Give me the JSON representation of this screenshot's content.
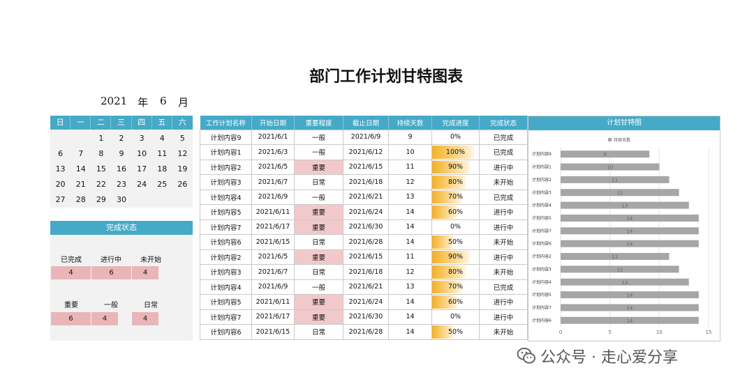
{
  "title": "部门工作计划甘特图表",
  "date": {
    "year": "2021",
    "year_unit": "年",
    "month": "6",
    "month_unit": "月"
  },
  "calendar": {
    "weekdays": [
      "日",
      "一",
      "二",
      "三",
      "四",
      "五",
      "六"
    ],
    "cells": [
      "",
      "",
      "1",
      "2",
      "3",
      "4",
      "5",
      "6",
      "7",
      "8",
      "9",
      "10",
      "11",
      "12",
      "13",
      "14",
      "15",
      "16",
      "17",
      "18",
      "19",
      "20",
      "21",
      "22",
      "23",
      "24",
      "25",
      "26",
      "27",
      "28",
      "29",
      "30",
      "",
      "",
      ""
    ]
  },
  "status": {
    "header": "完成状态",
    "states": [
      {
        "label": "已完成",
        "count": "4"
      },
      {
        "label": "进行中",
        "count": "6"
      },
      {
        "label": "未开始",
        "count": "4"
      }
    ],
    "importance": [
      {
        "label": "重要",
        "count": "6"
      },
      {
        "label": "一般",
        "count": "4"
      },
      {
        "label": "日常",
        "count": "4"
      }
    ]
  },
  "table": {
    "headers": [
      "工作计划名称",
      "开始日期",
      "重要程度",
      "截止日期",
      "持续天数",
      "完成进度",
      "完成状态"
    ],
    "rows": [
      {
        "name": "计划内容9",
        "start": "2021/6/1",
        "importance": "一般",
        "end": "2021/6/9",
        "days": "9",
        "progress": "0%",
        "progress_value": 0,
        "state": "已完成"
      },
      {
        "name": "计划内容1",
        "start": "2021/6/3",
        "importance": "一般",
        "end": "2021/6/12",
        "days": "10",
        "progress": "100%",
        "progress_value": 1.0,
        "state": "已完成"
      },
      {
        "name": "计划内容2",
        "start": "2021/6/5",
        "importance": "重要",
        "end": "2021/6/15",
        "days": "11",
        "progress": "90%",
        "progress_value": 0.9,
        "state": "进行中"
      },
      {
        "name": "计划内容3",
        "start": "2021/6/7",
        "importance": "日常",
        "end": "2021/6/18",
        "days": "12",
        "progress": "80%",
        "progress_value": 0.8,
        "state": "未开始"
      },
      {
        "name": "计划内容4",
        "start": "2021/6/9",
        "importance": "一般",
        "end": "2021/6/21",
        "days": "13",
        "progress": "70%",
        "progress_value": 0.7,
        "state": "已完成"
      },
      {
        "name": "计划内容5",
        "start": "2021/6/11",
        "importance": "重要",
        "end": "2021/6/24",
        "days": "14",
        "progress": "60%",
        "progress_value": 0.6,
        "state": "进行中"
      },
      {
        "name": "计划内容7",
        "start": "2021/6/17",
        "importance": "重要",
        "end": "2021/6/30",
        "days": "14",
        "progress": "0%",
        "progress_value": 0,
        "state": "进行中"
      },
      {
        "name": "计划内容6",
        "start": "2021/6/15",
        "importance": "日常",
        "end": "2021/6/28",
        "days": "14",
        "progress": "50%",
        "progress_value": 0.5,
        "state": "未开始"
      },
      {
        "name": "计划内容2",
        "start": "2021/6/5",
        "importance": "重要",
        "end": "2021/6/15",
        "days": "11",
        "progress": "90%",
        "progress_value": 0.9,
        "state": "进行中"
      },
      {
        "name": "计划内容3",
        "start": "2021/6/7",
        "importance": "日常",
        "end": "2021/6/18",
        "days": "12",
        "progress": "80%",
        "progress_value": 0.8,
        "state": "未开始"
      },
      {
        "name": "计划内容4",
        "start": "2021/6/9",
        "importance": "一般",
        "end": "2021/6/21",
        "days": "13",
        "progress": "70%",
        "progress_value": 0.7,
        "state": "已完成"
      },
      {
        "name": "计划内容5",
        "start": "2021/6/11",
        "importance": "重要",
        "end": "2021/6/24",
        "days": "14",
        "progress": "60%",
        "progress_value": 0.6,
        "state": "进行中"
      },
      {
        "name": "计划内容7",
        "start": "2021/6/17",
        "importance": "重要",
        "end": "2021/6/30",
        "days": "14",
        "progress": "0%",
        "progress_value": 0,
        "state": "进行中"
      },
      {
        "name": "计划内容6",
        "start": "2021/6/15",
        "importance": "日常",
        "end": "2021/6/28",
        "days": "14",
        "progress": "50%",
        "progress_value": 0.5,
        "state": "未开始"
      }
    ]
  },
  "gantt": {
    "header": "计划甘特图",
    "chart_data": {
      "type": "bar",
      "orientation": "horizontal",
      "legend": [
        "持续天数"
      ],
      "legend_position": "top",
      "categories": [
        "计划内容6",
        "计划内容7",
        "计划内容5",
        "计划内容4",
        "计划内容3",
        "计划内容2",
        "计划内容6",
        "计划内容7",
        "计划内容5",
        "计划内容4",
        "计划内容3",
        "计划内容2",
        "计划内容1",
        "计划内容9"
      ],
      "series": [
        {
          "name": "持续天数",
          "values": [
            14,
            14,
            14,
            13,
            12,
            11,
            14,
            14,
            14,
            13,
            12,
            11,
            10,
            9
          ]
        }
      ],
      "xticks": [
        "0",
        "5",
        "10",
        "15"
      ],
      "xlim": [
        0,
        15
      ],
      "bar_color": "#a6a6a6"
    }
  },
  "watermark": {
    "text": "公众号 · 走心爱分享"
  }
}
